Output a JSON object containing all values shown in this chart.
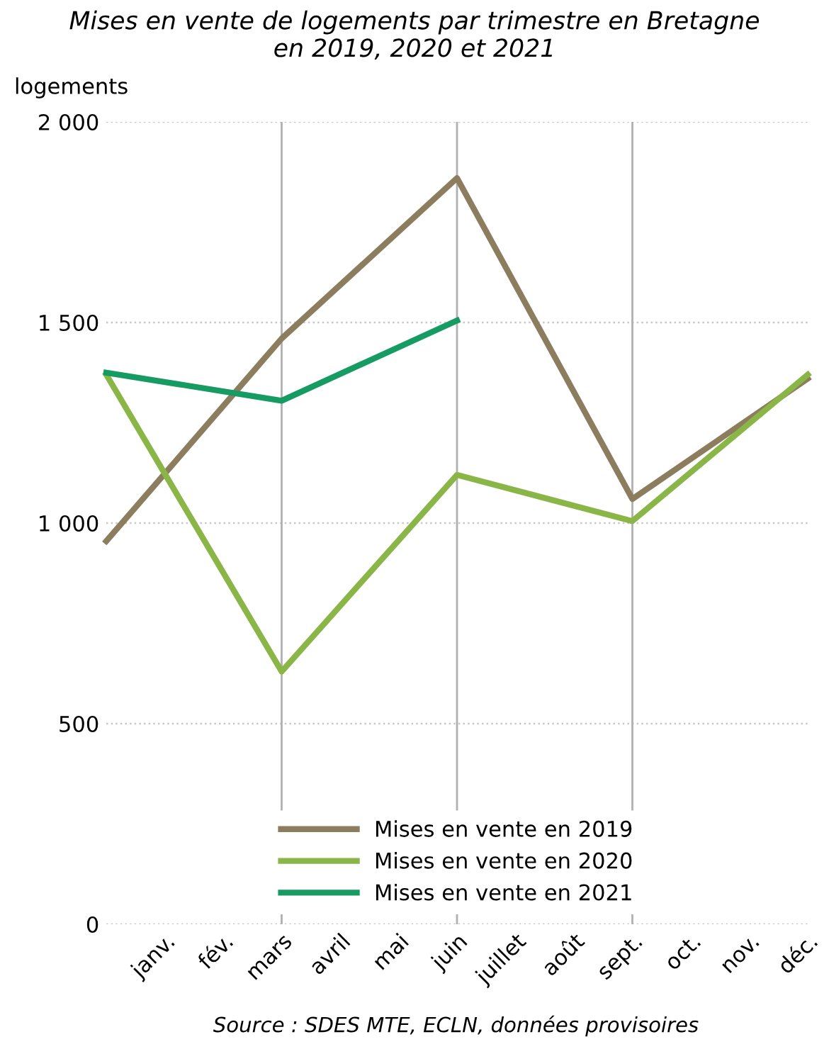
{
  "chart_data": {
    "type": "line",
    "title": "Mises en vente de logements par trimestre en Bretagne\nen 2019, 2020 et 2021",
    "ylabel": "logements",
    "categories": [
      null,
      "janv.",
      "fév.",
      "mars",
      "avril",
      "mai",
      "juin",
      "juillet",
      "août",
      "sept.",
      "oct.",
      "nov.",
      "déc."
    ],
    "ylim": [
      0,
      2000
    ],
    "yticks": [
      {
        "value": 0,
        "label": "0"
      },
      {
        "value": 500,
        "label": "500"
      },
      {
        "value": 1000,
        "label": "1 000"
      },
      {
        "value": 1500,
        "label": "1 500"
      },
      {
        "value": 2000,
        "label": "2 000"
      }
    ],
    "grid": "y",
    "legend": "bottom",
    "marker": "none",
    "line_style": "solid",
    "ref_lines": [
      {
        "axis": "x",
        "value": "mars",
        "color": "#b0b0b0"
      },
      {
        "axis": "x",
        "value": "juin",
        "color": "#b0b0b0"
      },
      {
        "axis": "x",
        "value": "sept.",
        "color": "#b0b0b0"
      }
    ],
    "series": [
      {
        "name": "Mises en vente en 2019",
        "color": "#8b7d5e",
        "values": [
          955,
          null,
          null,
          1460,
          null,
          null,
          1860,
          null,
          null,
          1060,
          null,
          null,
          1360
        ]
      },
      {
        "name": "Mises en vente en 2020",
        "color": "#8ab648",
        "values": [
          1370,
          null,
          null,
          630,
          null,
          null,
          1120,
          null,
          null,
          1005,
          null,
          null,
          1370
        ]
      },
      {
        "name": "Mises en vente en 2021",
        "color": "#169b62",
        "values": [
          1375,
          null,
          null,
          1305,
          null,
          null,
          1505,
          null,
          null,
          null,
          null,
          null,
          null
        ]
      }
    ],
    "annotations": [
      "Source : SDES MTE, ECLN, données provisoires"
    ]
  }
}
